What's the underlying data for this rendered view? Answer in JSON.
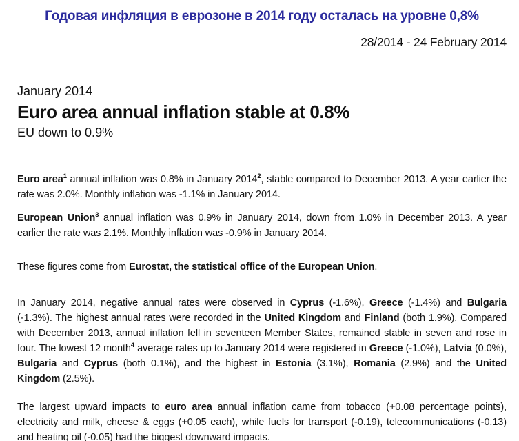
{
  "colors": {
    "title_blue": "#2c2c9e",
    "body_text": "#141414",
    "background": "#ffffff"
  },
  "banner": {
    "title_ru": "Годовая инфляция в еврозоне в 2014 году осталась на уровне 0,8%"
  },
  "masthead": {
    "release_number_date": "28/2014  - 24 February 2014"
  },
  "header": {
    "period": "January 2014",
    "headline": "Euro area annual inflation stable at 0.8%",
    "subheadline": "EU down to 0.9%"
  },
  "paragraphs": {
    "euro_area": {
      "segments": [
        {
          "text": "Euro area",
          "bold": true
        },
        {
          "text": "1",
          "sup": true,
          "bold": true
        },
        {
          "text": " annual inflation was 0.8% in January 2014"
        },
        {
          "text": "2",
          "sup": true,
          "bold": true
        },
        {
          "text": ", stable compared to December 2013. A year earlier the rate was 2.0%. Monthly inflation was -1.1% in January 2014."
        }
      ]
    },
    "european_union": {
      "segments": [
        {
          "text": "European Union",
          "bold": true
        },
        {
          "text": "3",
          "sup": true,
          "bold": true
        },
        {
          "text": " annual inflation was 0.9% in January 2014, down from 1.0% in December 2013. A year earlier the rate was 2.1%. Monthly inflation was -0.9% in January 2014."
        }
      ]
    },
    "source": {
      "segments": [
        {
          "text": "These figures come from "
        },
        {
          "text": "Eurostat, the statistical office of the European Union",
          "bold": true
        },
        {
          "text": "."
        }
      ]
    },
    "member_states": {
      "segments": [
        {
          "text": "In January 2014, negative annual rates were observed in "
        },
        {
          "text": "Cyprus",
          "bold": true
        },
        {
          "text": " (-1.6%), "
        },
        {
          "text": "Greece",
          "bold": true
        },
        {
          "text": " (-1.4%) and "
        },
        {
          "text": "Bulgaria",
          "bold": true
        },
        {
          "text": " (-1.3%). The highest annual rates were recorded in the "
        },
        {
          "text": "United Kingdom",
          "bold": true
        },
        {
          "text": " and "
        },
        {
          "text": "Finland",
          "bold": true
        },
        {
          "text": " (both 1.9%). Compared with December 2013, annual inflation fell in seventeen Member States, remained stable in seven and rose in four. The lowest 12 month"
        },
        {
          "text": "4",
          "sup": true,
          "bold": true
        },
        {
          "text": " average rates up to January 2014 were registered in "
        },
        {
          "text": "Greece",
          "bold": true
        },
        {
          "text": " (-1.0%), "
        },
        {
          "text": "Latvia",
          "bold": true
        },
        {
          "text": " (0.0%), "
        },
        {
          "text": "Bulgaria",
          "bold": true
        },
        {
          "text": " and "
        },
        {
          "text": "Cyprus",
          "bold": true
        },
        {
          "text": " (both 0.1%), and the highest in "
        },
        {
          "text": "Estonia",
          "bold": true
        },
        {
          "text": " (3.1%), "
        },
        {
          "text": "Romania",
          "bold": true
        },
        {
          "text": " (2.9%) and the "
        },
        {
          "text": "United Kingdom",
          "bold": true
        },
        {
          "text": " (2.5%)."
        }
      ]
    },
    "impacts": {
      "segments": [
        {
          "text": "The largest upward impacts to "
        },
        {
          "text": "euro area",
          "bold": true
        },
        {
          "text": " annual inflation came from tobacco (+0.08 percentage points), electricity and milk, cheese & eggs (+0.05 each), while fuels for transport (-0.19), telecommunications (-0.13) and heating oil (-0.05) had the biggest downward impacts."
        }
      ]
    }
  }
}
